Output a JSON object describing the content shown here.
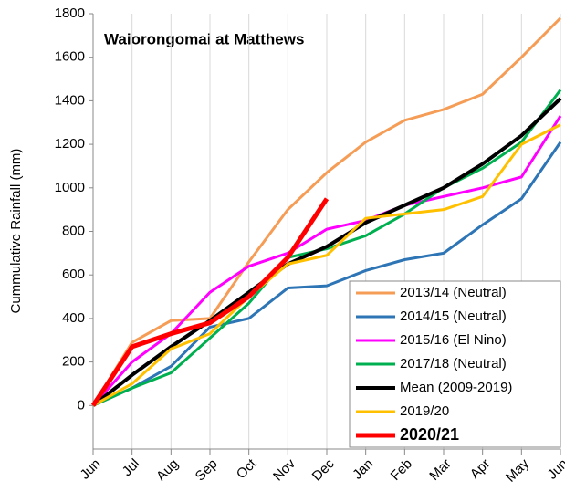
{
  "chart_data": {
    "type": "line",
    "title": "Waiorongomai at Matthews",
    "y_label": "Cummulative Rainfall (mm)",
    "categories": [
      "Jun",
      "Jul",
      "Aug",
      "Sep",
      "Oct",
      "Nov",
      "Dec",
      "Jan",
      "Feb",
      "Mar",
      "Apr",
      "May",
      "Jun"
    ],
    "ylim": [
      -200,
      1800
    ],
    "yticks": [
      0,
      200,
      400,
      600,
      800,
      1000,
      1200,
      1400,
      1600,
      1800
    ],
    "grid": "x",
    "legend": "lower right",
    "series": [
      {
        "name": "2013/14 (Neutral)",
        "color": "#f59d56",
        "line_width": 3,
        "values": [
          0,
          290,
          390,
          400,
          660,
          900,
          1070,
          1210,
          1310,
          1360,
          1430,
          1600,
          1780
        ]
      },
      {
        "name": "2014/15 (Neutral)",
        "color": "#2e75b6",
        "line_width": 3,
        "values": [
          0,
          80,
          180,
          360,
          400,
          540,
          550,
          620,
          670,
          700,
          830,
          950,
          1210
        ]
      },
      {
        "name": "2015/16 (El Nino)",
        "color": "#ff00ff",
        "line_width": 3,
        "values": [
          0,
          200,
          330,
          520,
          640,
          700,
          810,
          850,
          920,
          960,
          1000,
          1050,
          1330
        ]
      },
      {
        "name": "2017/18 (Neutral)",
        "color": "#00b050",
        "line_width": 3,
        "values": [
          0,
          80,
          150,
          310,
          470,
          680,
          720,
          780,
          880,
          1000,
          1090,
          1210,
          1450
        ]
      },
      {
        "name": "Mean (2009-2019)",
        "color": "#000000",
        "line_width": 4,
        "values": [
          0,
          140,
          270,
          390,
          520,
          650,
          730,
          840,
          920,
          1000,
          1110,
          1240,
          1410
        ]
      },
      {
        "name": "2019/20",
        "color": "#ffc000",
        "line_width": 3,
        "values": [
          0,
          100,
          260,
          330,
          500,
          650,
          690,
          860,
          880,
          900,
          960,
          1200,
          1290
        ]
      },
      {
        "name": "2020/21",
        "color": "#ff0000",
        "line_width": 5,
        "values": [
          0,
          270,
          330,
          380,
          500,
          680,
          950,
          null,
          null,
          null,
          null,
          null,
          null
        ]
      }
    ]
  }
}
